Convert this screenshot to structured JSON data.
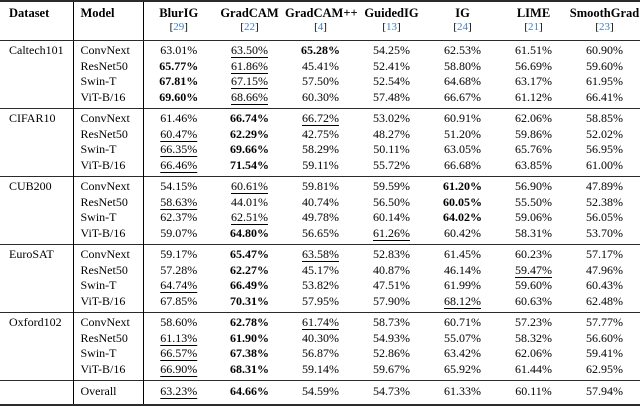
{
  "table": {
    "citation_color": "#3f7fbf",
    "header": {
      "columns": [
        {
          "label": "Dataset",
          "cite": ""
        },
        {
          "label": "Model",
          "cite": ""
        },
        {
          "label": "BlurIG",
          "cite": "29"
        },
        {
          "label": "GradCAM",
          "cite": "22"
        },
        {
          "label": "GradCAM++",
          "cite": "4"
        },
        {
          "label": "GuidedIG",
          "cite": "13"
        },
        {
          "label": "IG",
          "cite": "24"
        },
        {
          "label": "LIME",
          "cite": "21"
        },
        {
          "label": "SmoothGrad",
          "cite": "23"
        }
      ]
    },
    "groups": [
      {
        "dataset": "Caltech101",
        "rows": [
          {
            "model": "ConvNext",
            "values": [
              {
                "v": "63.01%",
                "s": "plain"
              },
              {
                "v": "63.50%",
                "s": "underline"
              },
              {
                "v": "65.28%",
                "s": "bold"
              },
              {
                "v": "54.25%",
                "s": "plain"
              },
              {
                "v": "62.53%",
                "s": "plain"
              },
              {
                "v": "61.51%",
                "s": "plain"
              },
              {
                "v": "60.90%",
                "s": "plain"
              }
            ]
          },
          {
            "model": "ResNet50",
            "values": [
              {
                "v": "65.77%",
                "s": "bold"
              },
              {
                "v": "61.86%",
                "s": "underline"
              },
              {
                "v": "45.41%",
                "s": "plain"
              },
              {
                "v": "52.41%",
                "s": "plain"
              },
              {
                "v": "58.80%",
                "s": "plain"
              },
              {
                "v": "56.69%",
                "s": "plain"
              },
              {
                "v": "59.60%",
                "s": "plain"
              }
            ]
          },
          {
            "model": "Swin-T",
            "values": [
              {
                "v": "67.81%",
                "s": "bold"
              },
              {
                "v": "67.15%",
                "s": "underline"
              },
              {
                "v": "57.50%",
                "s": "plain"
              },
              {
                "v": "52.54%",
                "s": "plain"
              },
              {
                "v": "64.68%",
                "s": "plain"
              },
              {
                "v": "63.17%",
                "s": "plain"
              },
              {
                "v": "61.95%",
                "s": "plain"
              }
            ]
          },
          {
            "model": "ViT-B/16",
            "values": [
              {
                "v": "69.60%",
                "s": "bold"
              },
              {
                "v": "68.66%",
                "s": "underline"
              },
              {
                "v": "60.30%",
                "s": "plain"
              },
              {
                "v": "57.48%",
                "s": "plain"
              },
              {
                "v": "66.67%",
                "s": "plain"
              },
              {
                "v": "61.12%",
                "s": "plain"
              },
              {
                "v": "66.41%",
                "s": "plain"
              }
            ]
          }
        ]
      },
      {
        "dataset": "CIFAR10",
        "rows": [
          {
            "model": "ConvNext",
            "values": [
              {
                "v": "61.46%",
                "s": "plain"
              },
              {
                "v": "66.74%",
                "s": "bold"
              },
              {
                "v": "66.72%",
                "s": "underline"
              },
              {
                "v": "53.02%",
                "s": "plain"
              },
              {
                "v": "60.91%",
                "s": "plain"
              },
              {
                "v": "62.06%",
                "s": "plain"
              },
              {
                "v": "58.85%",
                "s": "plain"
              }
            ]
          },
          {
            "model": "ResNet50",
            "values": [
              {
                "v": "60.47%",
                "s": "underline"
              },
              {
                "v": "62.29%",
                "s": "bold"
              },
              {
                "v": "42.75%",
                "s": "plain"
              },
              {
                "v": "48.27%",
                "s": "plain"
              },
              {
                "v": "51.20%",
                "s": "plain"
              },
              {
                "v": "59.86%",
                "s": "plain"
              },
              {
                "v": "52.02%",
                "s": "plain"
              }
            ]
          },
          {
            "model": "Swin-T",
            "values": [
              {
                "v": "66.35%",
                "s": "underline"
              },
              {
                "v": "69.66%",
                "s": "bold"
              },
              {
                "v": "58.29%",
                "s": "plain"
              },
              {
                "v": "50.11%",
                "s": "plain"
              },
              {
                "v": "63.05%",
                "s": "plain"
              },
              {
                "v": "65.76%",
                "s": "plain"
              },
              {
                "v": "56.95%",
                "s": "plain"
              }
            ]
          },
          {
            "model": "ViT-B/16",
            "values": [
              {
                "v": "66.46%",
                "s": "underline"
              },
              {
                "v": "71.54%",
                "s": "bold"
              },
              {
                "v": "59.11%",
                "s": "plain"
              },
              {
                "v": "55.72%",
                "s": "plain"
              },
              {
                "v": "66.68%",
                "s": "plain"
              },
              {
                "v": "63.85%",
                "s": "plain"
              },
              {
                "v": "61.00%",
                "s": "plain"
              }
            ]
          }
        ]
      },
      {
        "dataset": "CUB200",
        "rows": [
          {
            "model": "ConvNext",
            "values": [
              {
                "v": "54.15%",
                "s": "plain"
              },
              {
                "v": "60.61%",
                "s": "underline"
              },
              {
                "v": "59.81%",
                "s": "plain"
              },
              {
                "v": "59.59%",
                "s": "plain"
              },
              {
                "v": "61.20%",
                "s": "bold"
              },
              {
                "v": "56.90%",
                "s": "plain"
              },
              {
                "v": "47.89%",
                "s": "plain"
              }
            ]
          },
          {
            "model": "ResNet50",
            "values": [
              {
                "v": "58.63%",
                "s": "underline"
              },
              {
                "v": "44.01%",
                "s": "plain"
              },
              {
                "v": "40.74%",
                "s": "plain"
              },
              {
                "v": "56.50%",
                "s": "plain"
              },
              {
                "v": "60.05%",
                "s": "bold"
              },
              {
                "v": "55.50%",
                "s": "plain"
              },
              {
                "v": "52.38%",
                "s": "plain"
              }
            ]
          },
          {
            "model": "Swin-T",
            "values": [
              {
                "v": "62.37%",
                "s": "plain"
              },
              {
                "v": "62.51%",
                "s": "underline"
              },
              {
                "v": "49.78%",
                "s": "plain"
              },
              {
                "v": "60.14%",
                "s": "plain"
              },
              {
                "v": "64.02%",
                "s": "bold"
              },
              {
                "v": "59.06%",
                "s": "plain"
              },
              {
                "v": "56.05%",
                "s": "plain"
              }
            ]
          },
          {
            "model": "ViT-B/16",
            "values": [
              {
                "v": "59.07%",
                "s": "plain"
              },
              {
                "v": "64.80%",
                "s": "bold"
              },
              {
                "v": "56.65%",
                "s": "plain"
              },
              {
                "v": "61.26%",
                "s": "underline"
              },
              {
                "v": "60.42%",
                "s": "plain"
              },
              {
                "v": "58.31%",
                "s": "plain"
              },
              {
                "v": "53.70%",
                "s": "plain"
              }
            ]
          }
        ]
      },
      {
        "dataset": "EuroSAT",
        "rows": [
          {
            "model": "ConvNext",
            "values": [
              {
                "v": "59.17%",
                "s": "plain"
              },
              {
                "v": "65.47%",
                "s": "bold"
              },
              {
                "v": "63.58%",
                "s": "underline"
              },
              {
                "v": "52.83%",
                "s": "plain"
              },
              {
                "v": "61.45%",
                "s": "plain"
              },
              {
                "v": "60.23%",
                "s": "plain"
              },
              {
                "v": "57.17%",
                "s": "plain"
              }
            ]
          },
          {
            "model": "ResNet50",
            "values": [
              {
                "v": "57.28%",
                "s": "plain"
              },
              {
                "v": "62.27%",
                "s": "bold"
              },
              {
                "v": "45.17%",
                "s": "plain"
              },
              {
                "v": "40.87%",
                "s": "plain"
              },
              {
                "v": "46.14%",
                "s": "plain"
              },
              {
                "v": "59.47%",
                "s": "underline"
              },
              {
                "v": "47.96%",
                "s": "plain"
              }
            ]
          },
          {
            "model": "Swin-T",
            "values": [
              {
                "v": "64.74%",
                "s": "underline"
              },
              {
                "v": "66.49%",
                "s": "bold"
              },
              {
                "v": "53.82%",
                "s": "plain"
              },
              {
                "v": "47.51%",
                "s": "plain"
              },
              {
                "v": "61.99%",
                "s": "plain"
              },
              {
                "v": "59.60%",
                "s": "plain"
              },
              {
                "v": "60.43%",
                "s": "plain"
              }
            ]
          },
          {
            "model": "ViT-B/16",
            "values": [
              {
                "v": "67.85%",
                "s": "plain"
              },
              {
                "v": "70.31%",
                "s": "bold"
              },
              {
                "v": "57.95%",
                "s": "plain"
              },
              {
                "v": "57.90%",
                "s": "plain"
              },
              {
                "v": "68.12%",
                "s": "underline"
              },
              {
                "v": "60.63%",
                "s": "plain"
              },
              {
                "v": "62.48%",
                "s": "plain"
              }
            ]
          }
        ]
      },
      {
        "dataset": "Oxford102",
        "rows": [
          {
            "model": "ConvNext",
            "values": [
              {
                "v": "58.60%",
                "s": "plain"
              },
              {
                "v": "62.78%",
                "s": "bold"
              },
              {
                "v": "61.74%",
                "s": "underline"
              },
              {
                "v": "58.73%",
                "s": "plain"
              },
              {
                "v": "60.71%",
                "s": "plain"
              },
              {
                "v": "57.23%",
                "s": "plain"
              },
              {
                "v": "57.77%",
                "s": "plain"
              }
            ]
          },
          {
            "model": "ResNet50",
            "values": [
              {
                "v": "61.13%",
                "s": "underline"
              },
              {
                "v": "61.90%",
                "s": "bold"
              },
              {
                "v": "40.30%",
                "s": "plain"
              },
              {
                "v": "54.93%",
                "s": "plain"
              },
              {
                "v": "55.07%",
                "s": "plain"
              },
              {
                "v": "58.32%",
                "s": "plain"
              },
              {
                "v": "56.60%",
                "s": "plain"
              }
            ]
          },
          {
            "model": "Swin-T",
            "values": [
              {
                "v": "66.57%",
                "s": "underline"
              },
              {
                "v": "67.38%",
                "s": "bold"
              },
              {
                "v": "56.87%",
                "s": "plain"
              },
              {
                "v": "52.86%",
                "s": "plain"
              },
              {
                "v": "63.42%",
                "s": "plain"
              },
              {
                "v": "62.06%",
                "s": "plain"
              },
              {
                "v": "59.41%",
                "s": "plain"
              }
            ]
          },
          {
            "model": "ViT-B/16",
            "values": [
              {
                "v": "66.90%",
                "s": "underline"
              },
              {
                "v": "68.31%",
                "s": "bold"
              },
              {
                "v": "59.14%",
                "s": "plain"
              },
              {
                "v": "59.67%",
                "s": "plain"
              },
              {
                "v": "65.92%",
                "s": "plain"
              },
              {
                "v": "61.44%",
                "s": "plain"
              },
              {
                "v": "62.95%",
                "s": "plain"
              }
            ]
          }
        ]
      }
    ],
    "overall": {
      "label": "Overall",
      "values": [
        {
          "v": "63.23%",
          "s": "underline"
        },
        {
          "v": "64.66%",
          "s": "bold"
        },
        {
          "v": "54.59%",
          "s": "plain"
        },
        {
          "v": "54.73%",
          "s": "plain"
        },
        {
          "v": "61.33%",
          "s": "plain"
        },
        {
          "v": "60.11%",
          "s": "plain"
        },
        {
          "v": "57.94%",
          "s": "plain"
        }
      ]
    }
  }
}
